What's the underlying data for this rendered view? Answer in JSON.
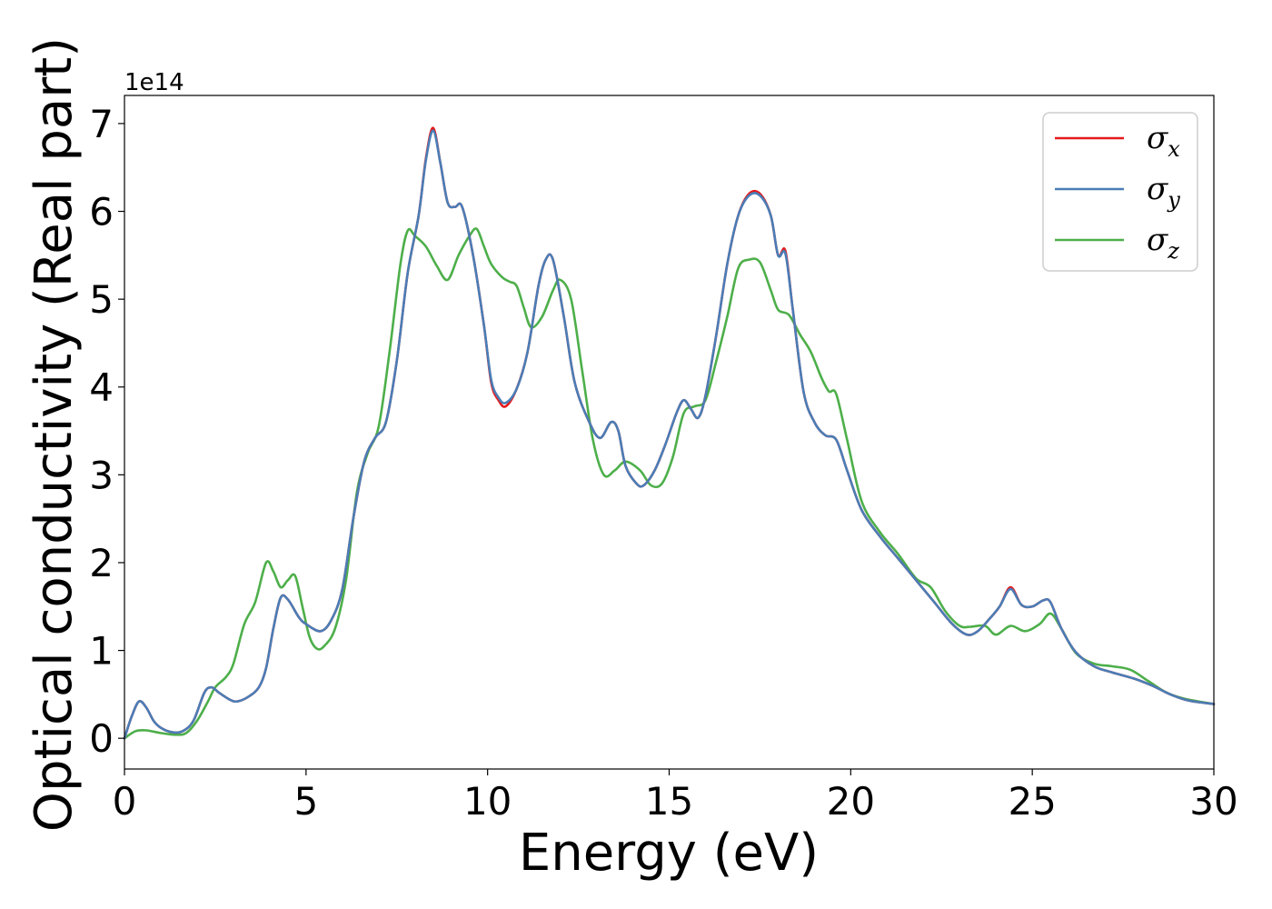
{
  "chart_data": {
    "type": "line",
    "title": "",
    "xlabel": "Energy (eV)",
    "ylabel": "Optical conductivity (Real part)",
    "y_offset_label": "1e14",
    "xlim": [
      0,
      30
    ],
    "ylim": [
      -0.35,
      7.32
    ],
    "x_ticks": [
      0,
      5,
      10,
      15,
      20,
      25,
      30
    ],
    "x_tick_labels": [
      "0",
      "5",
      "10",
      "15",
      "20",
      "25",
      "30"
    ],
    "y_ticks": [
      0,
      1,
      2,
      3,
      4,
      5,
      6,
      7
    ],
    "y_tick_labels": [
      "0",
      "1",
      "2",
      "3",
      "4",
      "5",
      "6",
      "7"
    ],
    "grid": false,
    "legend_position": "top-right",
    "series": [
      {
        "name": "σx",
        "legend_base": "σ",
        "legend_sub": "x",
        "color": "#e41a1c",
        "points": [
          [
            0,
            0
          ],
          [
            0.2,
            0.25
          ],
          [
            0.4,
            0.42
          ],
          [
            0.6,
            0.35
          ],
          [
            0.8,
            0.2
          ],
          [
            1.0,
            0.12
          ],
          [
            1.3,
            0.07
          ],
          [
            1.6,
            0.08
          ],
          [
            1.9,
            0.2
          ],
          [
            2.2,
            0.52
          ],
          [
            2.4,
            0.58
          ],
          [
            2.6,
            0.52
          ],
          [
            2.9,
            0.44
          ],
          [
            3.1,
            0.42
          ],
          [
            3.4,
            0.47
          ],
          [
            3.7,
            0.58
          ],
          [
            3.9,
            0.8
          ],
          [
            4.1,
            1.25
          ],
          [
            4.3,
            1.6
          ],
          [
            4.5,
            1.58
          ],
          [
            4.8,
            1.38
          ],
          [
            5.0,
            1.3
          ],
          [
            5.4,
            1.22
          ],
          [
            5.7,
            1.35
          ],
          [
            6.0,
            1.7
          ],
          [
            6.3,
            2.5
          ],
          [
            6.6,
            3.15
          ],
          [
            6.9,
            3.42
          ],
          [
            7.2,
            3.6
          ],
          [
            7.5,
            4.3
          ],
          [
            7.8,
            5.3
          ],
          [
            8.1,
            5.95
          ],
          [
            8.3,
            6.6
          ],
          [
            8.5,
            6.95
          ],
          [
            8.7,
            6.55
          ],
          [
            8.9,
            6.1
          ],
          [
            9.1,
            6.05
          ],
          [
            9.3,
            6.05
          ],
          [
            9.6,
            5.5
          ],
          [
            9.9,
            4.7
          ],
          [
            10.1,
            4.05
          ],
          [
            10.3,
            3.85
          ],
          [
            10.5,
            3.78
          ],
          [
            10.8,
            3.98
          ],
          [
            11.1,
            4.4
          ],
          [
            11.4,
            5.15
          ],
          [
            11.6,
            5.45
          ],
          [
            11.8,
            5.45
          ],
          [
            12.1,
            4.8
          ],
          [
            12.4,
            4.05
          ],
          [
            12.8,
            3.6
          ],
          [
            13.1,
            3.42
          ],
          [
            13.4,
            3.6
          ],
          [
            13.6,
            3.5
          ],
          [
            13.8,
            3.1
          ],
          [
            14.1,
            2.9
          ],
          [
            14.3,
            2.88
          ],
          [
            14.6,
            3.05
          ],
          [
            14.9,
            3.35
          ],
          [
            15.2,
            3.7
          ],
          [
            15.4,
            3.85
          ],
          [
            15.6,
            3.75
          ],
          [
            15.8,
            3.65
          ],
          [
            16.0,
            3.9
          ],
          [
            16.3,
            4.6
          ],
          [
            16.6,
            5.4
          ],
          [
            16.9,
            5.95
          ],
          [
            17.2,
            6.2
          ],
          [
            17.5,
            6.2
          ],
          [
            17.8,
            5.95
          ],
          [
            18.0,
            5.5
          ],
          [
            18.2,
            5.55
          ],
          [
            18.4,
            4.9
          ],
          [
            18.7,
            3.95
          ],
          [
            19.0,
            3.6
          ],
          [
            19.3,
            3.45
          ],
          [
            19.6,
            3.4
          ],
          [
            19.9,
            3.05
          ],
          [
            20.3,
            2.6
          ],
          [
            20.8,
            2.3
          ],
          [
            21.3,
            2.05
          ],
          [
            21.8,
            1.8
          ],
          [
            22.3,
            1.55
          ],
          [
            22.8,
            1.3
          ],
          [
            23.2,
            1.18
          ],
          [
            23.5,
            1.22
          ],
          [
            23.8,
            1.35
          ],
          [
            24.1,
            1.5
          ],
          [
            24.4,
            1.72
          ],
          [
            24.7,
            1.52
          ],
          [
            25.0,
            1.5
          ],
          [
            25.3,
            1.57
          ],
          [
            25.5,
            1.55
          ],
          [
            25.8,
            1.25
          ],
          [
            26.2,
            0.98
          ],
          [
            26.7,
            0.82
          ],
          [
            27.2,
            0.75
          ],
          [
            27.8,
            0.68
          ],
          [
            28.3,
            0.6
          ],
          [
            28.8,
            0.5
          ],
          [
            29.3,
            0.43
          ],
          [
            30.0,
            0.39
          ]
        ]
      },
      {
        "name": "σy",
        "legend_base": "σ",
        "legend_sub": "y",
        "color": "#4a7db6",
        "points": [
          [
            0,
            0
          ],
          [
            0.2,
            0.25
          ],
          [
            0.4,
            0.42
          ],
          [
            0.6,
            0.35
          ],
          [
            0.8,
            0.2
          ],
          [
            1.0,
            0.12
          ],
          [
            1.3,
            0.07
          ],
          [
            1.6,
            0.08
          ],
          [
            1.9,
            0.2
          ],
          [
            2.2,
            0.52
          ],
          [
            2.4,
            0.58
          ],
          [
            2.6,
            0.52
          ],
          [
            2.9,
            0.44
          ],
          [
            3.1,
            0.42
          ],
          [
            3.4,
            0.47
          ],
          [
            3.7,
            0.58
          ],
          [
            3.9,
            0.8
          ],
          [
            4.1,
            1.25
          ],
          [
            4.3,
            1.6
          ],
          [
            4.5,
            1.58
          ],
          [
            4.8,
            1.38
          ],
          [
            5.0,
            1.3
          ],
          [
            5.4,
            1.22
          ],
          [
            5.7,
            1.35
          ],
          [
            6.0,
            1.7
          ],
          [
            6.3,
            2.5
          ],
          [
            6.6,
            3.15
          ],
          [
            6.9,
            3.42
          ],
          [
            7.2,
            3.6
          ],
          [
            7.5,
            4.3
          ],
          [
            7.8,
            5.3
          ],
          [
            8.1,
            5.95
          ],
          [
            8.3,
            6.58
          ],
          [
            8.5,
            6.92
          ],
          [
            8.7,
            6.55
          ],
          [
            8.9,
            6.1
          ],
          [
            9.1,
            6.05
          ],
          [
            9.3,
            6.05
          ],
          [
            9.6,
            5.5
          ],
          [
            9.9,
            4.7
          ],
          [
            10.1,
            4.08
          ],
          [
            10.3,
            3.88
          ],
          [
            10.5,
            3.82
          ],
          [
            10.8,
            3.98
          ],
          [
            11.1,
            4.4
          ],
          [
            11.4,
            5.15
          ],
          [
            11.6,
            5.45
          ],
          [
            11.8,
            5.45
          ],
          [
            12.1,
            4.8
          ],
          [
            12.4,
            4.05
          ],
          [
            12.8,
            3.6
          ],
          [
            13.1,
            3.42
          ],
          [
            13.4,
            3.6
          ],
          [
            13.6,
            3.5
          ],
          [
            13.8,
            3.1
          ],
          [
            14.1,
            2.9
          ],
          [
            14.3,
            2.88
          ],
          [
            14.6,
            3.05
          ],
          [
            14.9,
            3.35
          ],
          [
            15.2,
            3.7
          ],
          [
            15.4,
            3.85
          ],
          [
            15.6,
            3.75
          ],
          [
            15.8,
            3.65
          ],
          [
            16.0,
            3.9
          ],
          [
            16.3,
            4.6
          ],
          [
            16.6,
            5.4
          ],
          [
            16.9,
            5.95
          ],
          [
            17.2,
            6.18
          ],
          [
            17.5,
            6.18
          ],
          [
            17.8,
            5.95
          ],
          [
            18.0,
            5.5
          ],
          [
            18.2,
            5.52
          ],
          [
            18.4,
            4.9
          ],
          [
            18.7,
            3.95
          ],
          [
            19.0,
            3.6
          ],
          [
            19.3,
            3.45
          ],
          [
            19.6,
            3.4
          ],
          [
            19.9,
            3.05
          ],
          [
            20.3,
            2.6
          ],
          [
            20.8,
            2.3
          ],
          [
            21.3,
            2.05
          ],
          [
            21.8,
            1.8
          ],
          [
            22.3,
            1.55
          ],
          [
            22.8,
            1.3
          ],
          [
            23.2,
            1.18
          ],
          [
            23.5,
            1.22
          ],
          [
            23.8,
            1.35
          ],
          [
            24.1,
            1.5
          ],
          [
            24.4,
            1.7
          ],
          [
            24.7,
            1.52
          ],
          [
            25.0,
            1.5
          ],
          [
            25.3,
            1.57
          ],
          [
            25.5,
            1.55
          ],
          [
            25.8,
            1.25
          ],
          [
            26.2,
            0.98
          ],
          [
            26.7,
            0.82
          ],
          [
            27.2,
            0.75
          ],
          [
            27.8,
            0.68
          ],
          [
            28.3,
            0.6
          ],
          [
            28.8,
            0.5
          ],
          [
            29.3,
            0.43
          ],
          [
            30.0,
            0.39
          ]
        ]
      },
      {
        "name": "σz",
        "legend_base": "σ",
        "legend_sub": "z",
        "color": "#4daf4a",
        "points": [
          [
            0,
            0
          ],
          [
            0.3,
            0.08
          ],
          [
            0.6,
            0.09
          ],
          [
            1.0,
            0.06
          ],
          [
            1.4,
            0.04
          ],
          [
            1.7,
            0.06
          ],
          [
            2.0,
            0.2
          ],
          [
            2.3,
            0.42
          ],
          [
            2.5,
            0.58
          ],
          [
            2.8,
            0.7
          ],
          [
            3.0,
            0.85
          ],
          [
            3.3,
            1.3
          ],
          [
            3.6,
            1.55
          ],
          [
            3.9,
            2.0
          ],
          [
            4.1,
            1.9
          ],
          [
            4.3,
            1.72
          ],
          [
            4.5,
            1.8
          ],
          [
            4.7,
            1.85
          ],
          [
            4.9,
            1.5
          ],
          [
            5.1,
            1.15
          ],
          [
            5.3,
            1.02
          ],
          [
            5.5,
            1.05
          ],
          [
            5.8,
            1.25
          ],
          [
            6.1,
            1.8
          ],
          [
            6.4,
            2.8
          ],
          [
            6.7,
            3.25
          ],
          [
            7.0,
            3.55
          ],
          [
            7.3,
            4.4
          ],
          [
            7.6,
            5.4
          ],
          [
            7.8,
            5.78
          ],
          [
            8.0,
            5.72
          ],
          [
            8.3,
            5.6
          ],
          [
            8.6,
            5.38
          ],
          [
            8.9,
            5.22
          ],
          [
            9.2,
            5.5
          ],
          [
            9.5,
            5.72
          ],
          [
            9.7,
            5.8
          ],
          [
            9.9,
            5.6
          ],
          [
            10.1,
            5.4
          ],
          [
            10.4,
            5.25
          ],
          [
            10.6,
            5.2
          ],
          [
            10.8,
            5.15
          ],
          [
            11.0,
            4.9
          ],
          [
            11.2,
            4.68
          ],
          [
            11.5,
            4.8
          ],
          [
            11.8,
            5.1
          ],
          [
            12.0,
            5.22
          ],
          [
            12.3,
            5.0
          ],
          [
            12.6,
            4.2
          ],
          [
            12.9,
            3.4
          ],
          [
            13.2,
            3.0
          ],
          [
            13.5,
            3.05
          ],
          [
            13.8,
            3.15
          ],
          [
            14.2,
            3.05
          ],
          [
            14.5,
            2.88
          ],
          [
            14.8,
            2.9
          ],
          [
            15.1,
            3.2
          ],
          [
            15.4,
            3.7
          ],
          [
            15.7,
            3.78
          ],
          [
            16.0,
            3.85
          ],
          [
            16.3,
            4.3
          ],
          [
            16.6,
            4.8
          ],
          [
            16.9,
            5.35
          ],
          [
            17.2,
            5.45
          ],
          [
            17.5,
            5.42
          ],
          [
            17.8,
            5.1
          ],
          [
            18.0,
            4.88
          ],
          [
            18.3,
            4.82
          ],
          [
            18.6,
            4.6
          ],
          [
            18.9,
            4.4
          ],
          [
            19.2,
            4.1
          ],
          [
            19.4,
            3.95
          ],
          [
            19.6,
            3.92
          ],
          [
            19.9,
            3.4
          ],
          [
            20.3,
            2.7
          ],
          [
            20.8,
            2.35
          ],
          [
            21.3,
            2.1
          ],
          [
            21.8,
            1.82
          ],
          [
            22.2,
            1.72
          ],
          [
            22.6,
            1.45
          ],
          [
            23.0,
            1.28
          ],
          [
            23.3,
            1.27
          ],
          [
            23.7,
            1.28
          ],
          [
            24.0,
            1.18
          ],
          [
            24.4,
            1.28
          ],
          [
            24.8,
            1.22
          ],
          [
            25.2,
            1.3
          ],
          [
            25.5,
            1.42
          ],
          [
            25.8,
            1.25
          ],
          [
            26.2,
            0.97
          ],
          [
            26.7,
            0.85
          ],
          [
            27.2,
            0.82
          ],
          [
            27.7,
            0.78
          ],
          [
            28.2,
            0.65
          ],
          [
            28.7,
            0.52
          ],
          [
            29.2,
            0.45
          ],
          [
            30.0,
            0.39
          ]
        ]
      }
    ]
  }
}
